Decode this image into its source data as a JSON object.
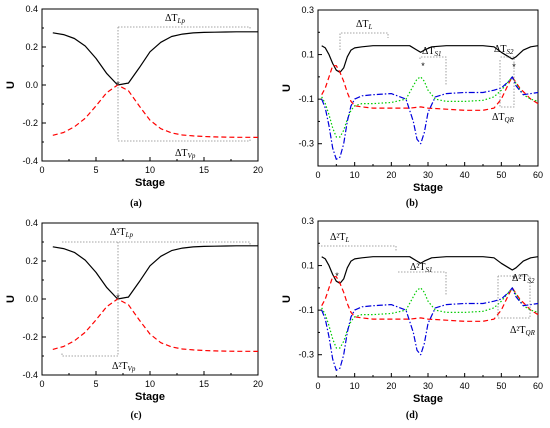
{
  "chart_data": [
    {
      "type": "line",
      "panel_label": "(a)",
      "xlabel": "Stage",
      "ylabel": "U",
      "xlim": [
        0,
        20
      ],
      "ylim": [
        -0.4,
        0.4
      ],
      "xticks": [
        0,
        5,
        10,
        15,
        20
      ],
      "yticks": [
        -0.4,
        -0.2,
        0.0,
        0.2,
        0.4
      ],
      "series": [
        {
          "color": "#000000",
          "dash": "solid",
          "x": [
            1,
            2,
            3,
            4,
            5,
            6,
            7,
            8,
            9,
            10,
            11,
            12,
            13,
            14,
            15,
            16,
            17,
            18,
            19,
            20
          ],
          "y": [
            0.275,
            0.265,
            0.245,
            0.205,
            0.14,
            0.06,
            0.0,
            0.01,
            0.09,
            0.175,
            0.225,
            0.255,
            0.268,
            0.274,
            0.277,
            0.278,
            0.279,
            0.28,
            0.28,
            0.28
          ]
        },
        {
          "color": "#ff0000",
          "dash": "dashed",
          "x": [
            1,
            2,
            3,
            4,
            5,
            6,
            7,
            8,
            9,
            10,
            11,
            12,
            13,
            14,
            15,
            16,
            17,
            18,
            19,
            20
          ],
          "y": [
            -0.265,
            -0.25,
            -0.22,
            -0.175,
            -0.11,
            -0.04,
            0.0,
            -0.03,
            -0.11,
            -0.185,
            -0.23,
            -0.252,
            -0.263,
            -0.268,
            -0.271,
            -0.273,
            -0.274,
            -0.275,
            -0.275,
            -0.276
          ]
        }
      ],
      "annotations": [
        {
          "main": "ΔT",
          "sub": "Lp"
        },
        {
          "main": "ΔT",
          "sub": "Vp"
        }
      ]
    },
    {
      "type": "line",
      "panel_label": "(b)",
      "xlabel": "Stage",
      "ylabel": "U",
      "xlim": [
        0,
        60
      ],
      "ylim": [
        -0.4,
        0.3
      ],
      "xticks": [
        0,
        10,
        20,
        30,
        40,
        50,
        60
      ],
      "yticks": [
        -0.3,
        -0.1,
        0.1,
        0.3
      ],
      "series": [
        {
          "color": "#000000",
          "dash": "solid",
          "x": [
            1,
            2,
            3,
            4,
            5,
            6,
            7,
            8,
            9,
            10,
            12,
            15,
            20,
            25,
            27,
            28,
            29,
            31,
            35,
            40,
            45,
            48,
            50,
            52,
            53,
            54,
            56,
            58,
            60
          ],
          "y": [
            0.14,
            0.13,
            0.1,
            0.06,
            0.03,
            0.02,
            0.04,
            0.09,
            0.12,
            0.13,
            0.135,
            0.14,
            0.14,
            0.14,
            0.12,
            0.11,
            0.12,
            0.135,
            0.14,
            0.14,
            0.14,
            0.135,
            0.11,
            0.09,
            0.08,
            0.09,
            0.12,
            0.135,
            0.14
          ]
        },
        {
          "color": "#ff0000",
          "dash": "dashed",
          "x": [
            1,
            2,
            3,
            4,
            5,
            6,
            7,
            8,
            9,
            10,
            12,
            15,
            20,
            25,
            28,
            30,
            35,
            40,
            45,
            48,
            50,
            52,
            53,
            55,
            58,
            60
          ],
          "y": [
            -0.08,
            -0.05,
            0.0,
            0.05,
            0.05,
            0.02,
            -0.02,
            -0.07,
            -0.11,
            -0.13,
            -0.135,
            -0.14,
            -0.14,
            -0.14,
            -0.135,
            -0.14,
            -0.145,
            -0.15,
            -0.15,
            -0.14,
            -0.1,
            -0.03,
            0.0,
            -0.05,
            -0.1,
            -0.12
          ]
        },
        {
          "color": "#00cc00",
          "dash": "dotted",
          "x": [
            1,
            2,
            3,
            4,
            5,
            6,
            7,
            8,
            9,
            10,
            12,
            15,
            20,
            24,
            26,
            27,
            28,
            29,
            30,
            32,
            35,
            40,
            45,
            48,
            50,
            52,
            53,
            54,
            56,
            58,
            60
          ],
          "y": [
            -0.09,
            -0.12,
            -0.17,
            -0.23,
            -0.27,
            -0.27,
            -0.24,
            -0.19,
            -0.15,
            -0.13,
            -0.12,
            -0.12,
            -0.115,
            -0.1,
            -0.04,
            -0.01,
            0.0,
            -0.02,
            -0.06,
            -0.1,
            -0.11,
            -0.11,
            -0.105,
            -0.09,
            -0.06,
            -0.02,
            0.0,
            -0.03,
            -0.08,
            -0.1,
            -0.11
          ]
        },
        {
          "color": "#0000dd",
          "dash": "dashdot",
          "x": [
            1,
            2,
            3,
            4,
            5,
            6,
            7,
            8,
            9,
            10,
            12,
            15,
            20,
            24,
            26,
            27,
            28,
            29,
            30,
            32,
            35,
            40,
            45,
            48,
            50,
            52,
            53,
            54,
            56,
            58,
            60
          ],
          "y": [
            -0.1,
            -0.14,
            -0.22,
            -0.32,
            -0.37,
            -0.36,
            -0.3,
            -0.2,
            -0.13,
            -0.1,
            -0.085,
            -0.08,
            -0.075,
            -0.1,
            -0.2,
            -0.28,
            -0.3,
            -0.25,
            -0.16,
            -0.09,
            -0.075,
            -0.07,
            -0.07,
            -0.06,
            -0.05,
            -0.02,
            0.0,
            -0.04,
            -0.08,
            -0.075,
            -0.07
          ]
        }
      ],
      "annotations": [
        {
          "main": "ΔT",
          "sub": "L"
        },
        {
          "main": "ΔT",
          "sub": "S1"
        },
        {
          "main": "ΔT",
          "sub": "S2"
        },
        {
          "main": "ΔT",
          "sub": "QR"
        }
      ]
    },
    {
      "type": "line",
      "panel_label": "(c)",
      "xlabel": "Stage",
      "ylabel": "U",
      "xlim": [
        0,
        20
      ],
      "ylim": [
        -0.4,
        0.4
      ],
      "xticks": [
        0,
        5,
        10,
        15,
        20
      ],
      "yticks": [
        -0.4,
        -0.2,
        0.0,
        0.2,
        0.4
      ],
      "series": [
        {
          "color": "#000000",
          "dash": "solid",
          "x": [
            1,
            2,
            3,
            4,
            5,
            6,
            7,
            8,
            9,
            10,
            11,
            12,
            13,
            14,
            15,
            16,
            17,
            18,
            19,
            20
          ],
          "y": [
            0.275,
            0.265,
            0.245,
            0.205,
            0.14,
            0.06,
            0.0,
            0.01,
            0.09,
            0.175,
            0.225,
            0.255,
            0.268,
            0.274,
            0.277,
            0.278,
            0.279,
            0.28,
            0.28,
            0.28
          ]
        },
        {
          "color": "#ff0000",
          "dash": "dashed",
          "x": [
            1,
            2,
            3,
            4,
            5,
            6,
            7,
            8,
            9,
            10,
            11,
            12,
            13,
            14,
            15,
            16,
            17,
            18,
            19,
            20
          ],
          "y": [
            -0.265,
            -0.25,
            -0.22,
            -0.175,
            -0.11,
            -0.04,
            0.0,
            -0.03,
            -0.11,
            -0.185,
            -0.23,
            -0.252,
            -0.263,
            -0.268,
            -0.271,
            -0.273,
            -0.274,
            -0.275,
            -0.275,
            -0.276
          ]
        }
      ],
      "annotations": [
        {
          "main": "Δ²T",
          "sub": "Lp"
        },
        {
          "main": "Δ²T",
          "sub": "Vp"
        }
      ]
    },
    {
      "type": "line",
      "panel_label": "(d)",
      "xlabel": "Stage",
      "ylabel": "U",
      "xlim": [
        0,
        60
      ],
      "ylim": [
        -0.4,
        0.3
      ],
      "xticks": [
        0,
        10,
        20,
        30,
        40,
        50,
        60
      ],
      "yticks": [
        -0.3,
        -0.1,
        0.1,
        0.3
      ],
      "series": [
        {
          "color": "#000000",
          "dash": "solid",
          "x": [
            1,
            2,
            3,
            4,
            5,
            6,
            7,
            8,
            9,
            10,
            12,
            15,
            20,
            25,
            27,
            28,
            29,
            31,
            35,
            40,
            45,
            48,
            50,
            52,
            53,
            54,
            56,
            58,
            60
          ],
          "y": [
            0.14,
            0.13,
            0.1,
            0.06,
            0.03,
            0.02,
            0.04,
            0.09,
            0.12,
            0.13,
            0.135,
            0.14,
            0.14,
            0.14,
            0.12,
            0.11,
            0.12,
            0.135,
            0.14,
            0.14,
            0.14,
            0.135,
            0.11,
            0.09,
            0.08,
            0.09,
            0.12,
            0.135,
            0.14
          ]
        },
        {
          "color": "#ff0000",
          "dash": "dashed",
          "x": [
            1,
            2,
            3,
            4,
            5,
            6,
            7,
            8,
            9,
            10,
            12,
            15,
            20,
            25,
            28,
            30,
            35,
            40,
            45,
            48,
            50,
            52,
            53,
            55,
            58,
            60
          ],
          "y": [
            -0.08,
            -0.05,
            0.0,
            0.05,
            0.05,
            0.02,
            -0.02,
            -0.07,
            -0.11,
            -0.13,
            -0.135,
            -0.14,
            -0.14,
            -0.14,
            -0.135,
            -0.14,
            -0.145,
            -0.15,
            -0.15,
            -0.14,
            -0.1,
            -0.03,
            0.0,
            -0.05,
            -0.1,
            -0.12
          ]
        },
        {
          "color": "#00cc00",
          "dash": "dotted",
          "x": [
            1,
            2,
            3,
            4,
            5,
            6,
            7,
            8,
            9,
            10,
            12,
            15,
            20,
            24,
            26,
            27,
            28,
            29,
            30,
            32,
            35,
            40,
            45,
            48,
            50,
            52,
            53,
            54,
            56,
            58,
            60
          ],
          "y": [
            -0.09,
            -0.12,
            -0.17,
            -0.23,
            -0.27,
            -0.27,
            -0.24,
            -0.19,
            -0.15,
            -0.13,
            -0.12,
            -0.12,
            -0.115,
            -0.1,
            -0.04,
            -0.01,
            0.0,
            -0.02,
            -0.06,
            -0.1,
            -0.11,
            -0.11,
            -0.105,
            -0.09,
            -0.06,
            -0.02,
            0.0,
            -0.03,
            -0.08,
            -0.1,
            -0.11
          ]
        },
        {
          "color": "#0000dd",
          "dash": "dashdot",
          "x": [
            1,
            2,
            3,
            4,
            5,
            6,
            7,
            8,
            9,
            10,
            12,
            15,
            20,
            24,
            26,
            27,
            28,
            29,
            30,
            32,
            35,
            40,
            45,
            48,
            50,
            52,
            53,
            54,
            56,
            58,
            60
          ],
          "y": [
            -0.1,
            -0.14,
            -0.22,
            -0.32,
            -0.37,
            -0.36,
            -0.3,
            -0.2,
            -0.13,
            -0.1,
            -0.085,
            -0.08,
            -0.075,
            -0.1,
            -0.2,
            -0.28,
            -0.3,
            -0.25,
            -0.16,
            -0.09,
            -0.075,
            -0.07,
            -0.07,
            -0.06,
            -0.05,
            -0.02,
            0.0,
            -0.04,
            -0.08,
            -0.075,
            -0.07
          ]
        }
      ],
      "annotations": [
        {
          "main": "Δ²T",
          "sub": "L"
        },
        {
          "main": "Δ²T",
          "sub": "S1"
        },
        {
          "main": "Δ²T",
          "sub": "S2"
        },
        {
          "main": "Δ²T",
          "sub": "QR"
        }
      ]
    }
  ]
}
